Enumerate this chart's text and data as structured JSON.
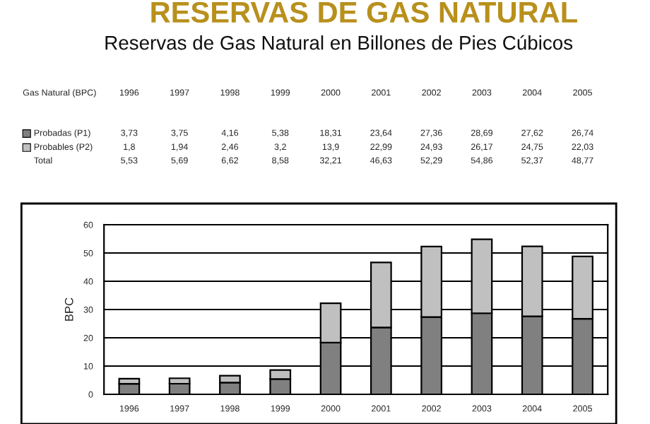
{
  "chart_data": {
    "type": "bar",
    "title": "RESERVAS DE GAS NATURAL",
    "subtitle": "Reservas de Gas Natural en Billones de Pies Cúbicos",
    "ylabel": "BPC",
    "annotations": [
      "Gas Natural (BPC)",
      "Total",
      "5,53",
      "5,69",
      "6,62",
      "8,58",
      "32,21",
      "46,63",
      "52,29",
      "54,86",
      "52,37",
      "48,77"
    ],
    "categories": [
      "1996",
      "1997",
      "1998",
      "1999",
      "2000",
      "2001",
      "2002",
      "2003",
      "2004",
      "2005"
    ],
    "stacked": true,
    "series": [
      {
        "name": "Probadas (P1)",
        "color": "#808080",
        "values": [
          3.73,
          3.75,
          4.16,
          5.38,
          18.31,
          23.64,
          27.36,
          28.69,
          27.62,
          26.74
        ],
        "value_labels": [
          "3,73",
          "3,75",
          "4,16",
          "5,38",
          "18,31",
          "23,64",
          "27,36",
          "28,69",
          "27,62",
          "26,74"
        ]
      },
      {
        "name": "Probables (P2)",
        "color": "#c0c0c0",
        "values": [
          1.8,
          1.94,
          2.46,
          3.2,
          13.9,
          22.99,
          24.93,
          26.17,
          24.75,
          22.03
        ],
        "value_labels": [
          "1,8",
          "1,94",
          "2,46",
          "3,2",
          "13,9",
          "22,99",
          "24,93",
          "26,17",
          "24,75",
          "22,03"
        ]
      }
    ],
    "ylim": [
      0,
      60
    ],
    "yticks": [
      0,
      10,
      20,
      30,
      40,
      50,
      60
    ],
    "grid": "y",
    "legend": "top left"
  }
}
